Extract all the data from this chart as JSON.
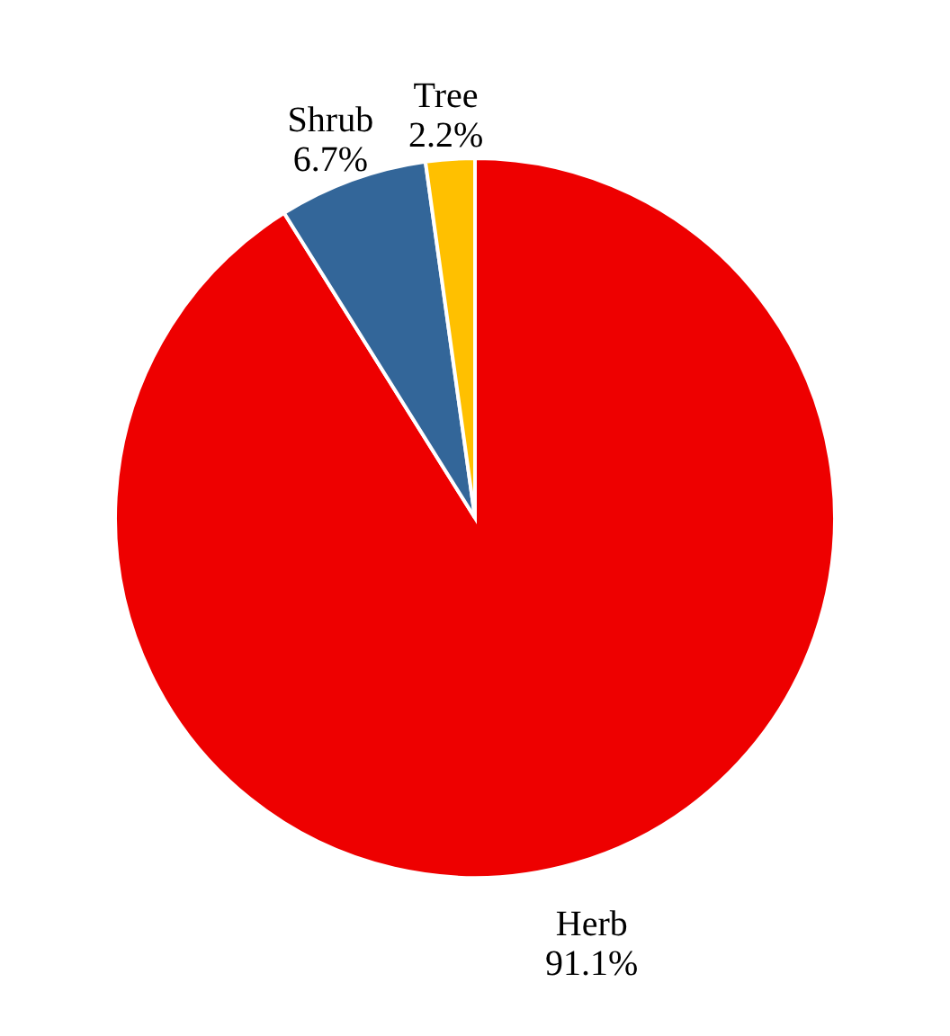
{
  "chart_data": {
    "type": "pie",
    "categories": [
      "Herb",
      "Shrub",
      "Tree"
    ],
    "values": [
      91.1,
      6.7,
      2.2
    ],
    "colors": [
      "#ee0000",
      "#336699",
      "#ffc000"
    ],
    "value_labels": [
      "91.1%",
      "6.7%",
      "2.2%"
    ],
    "legend": false
  }
}
